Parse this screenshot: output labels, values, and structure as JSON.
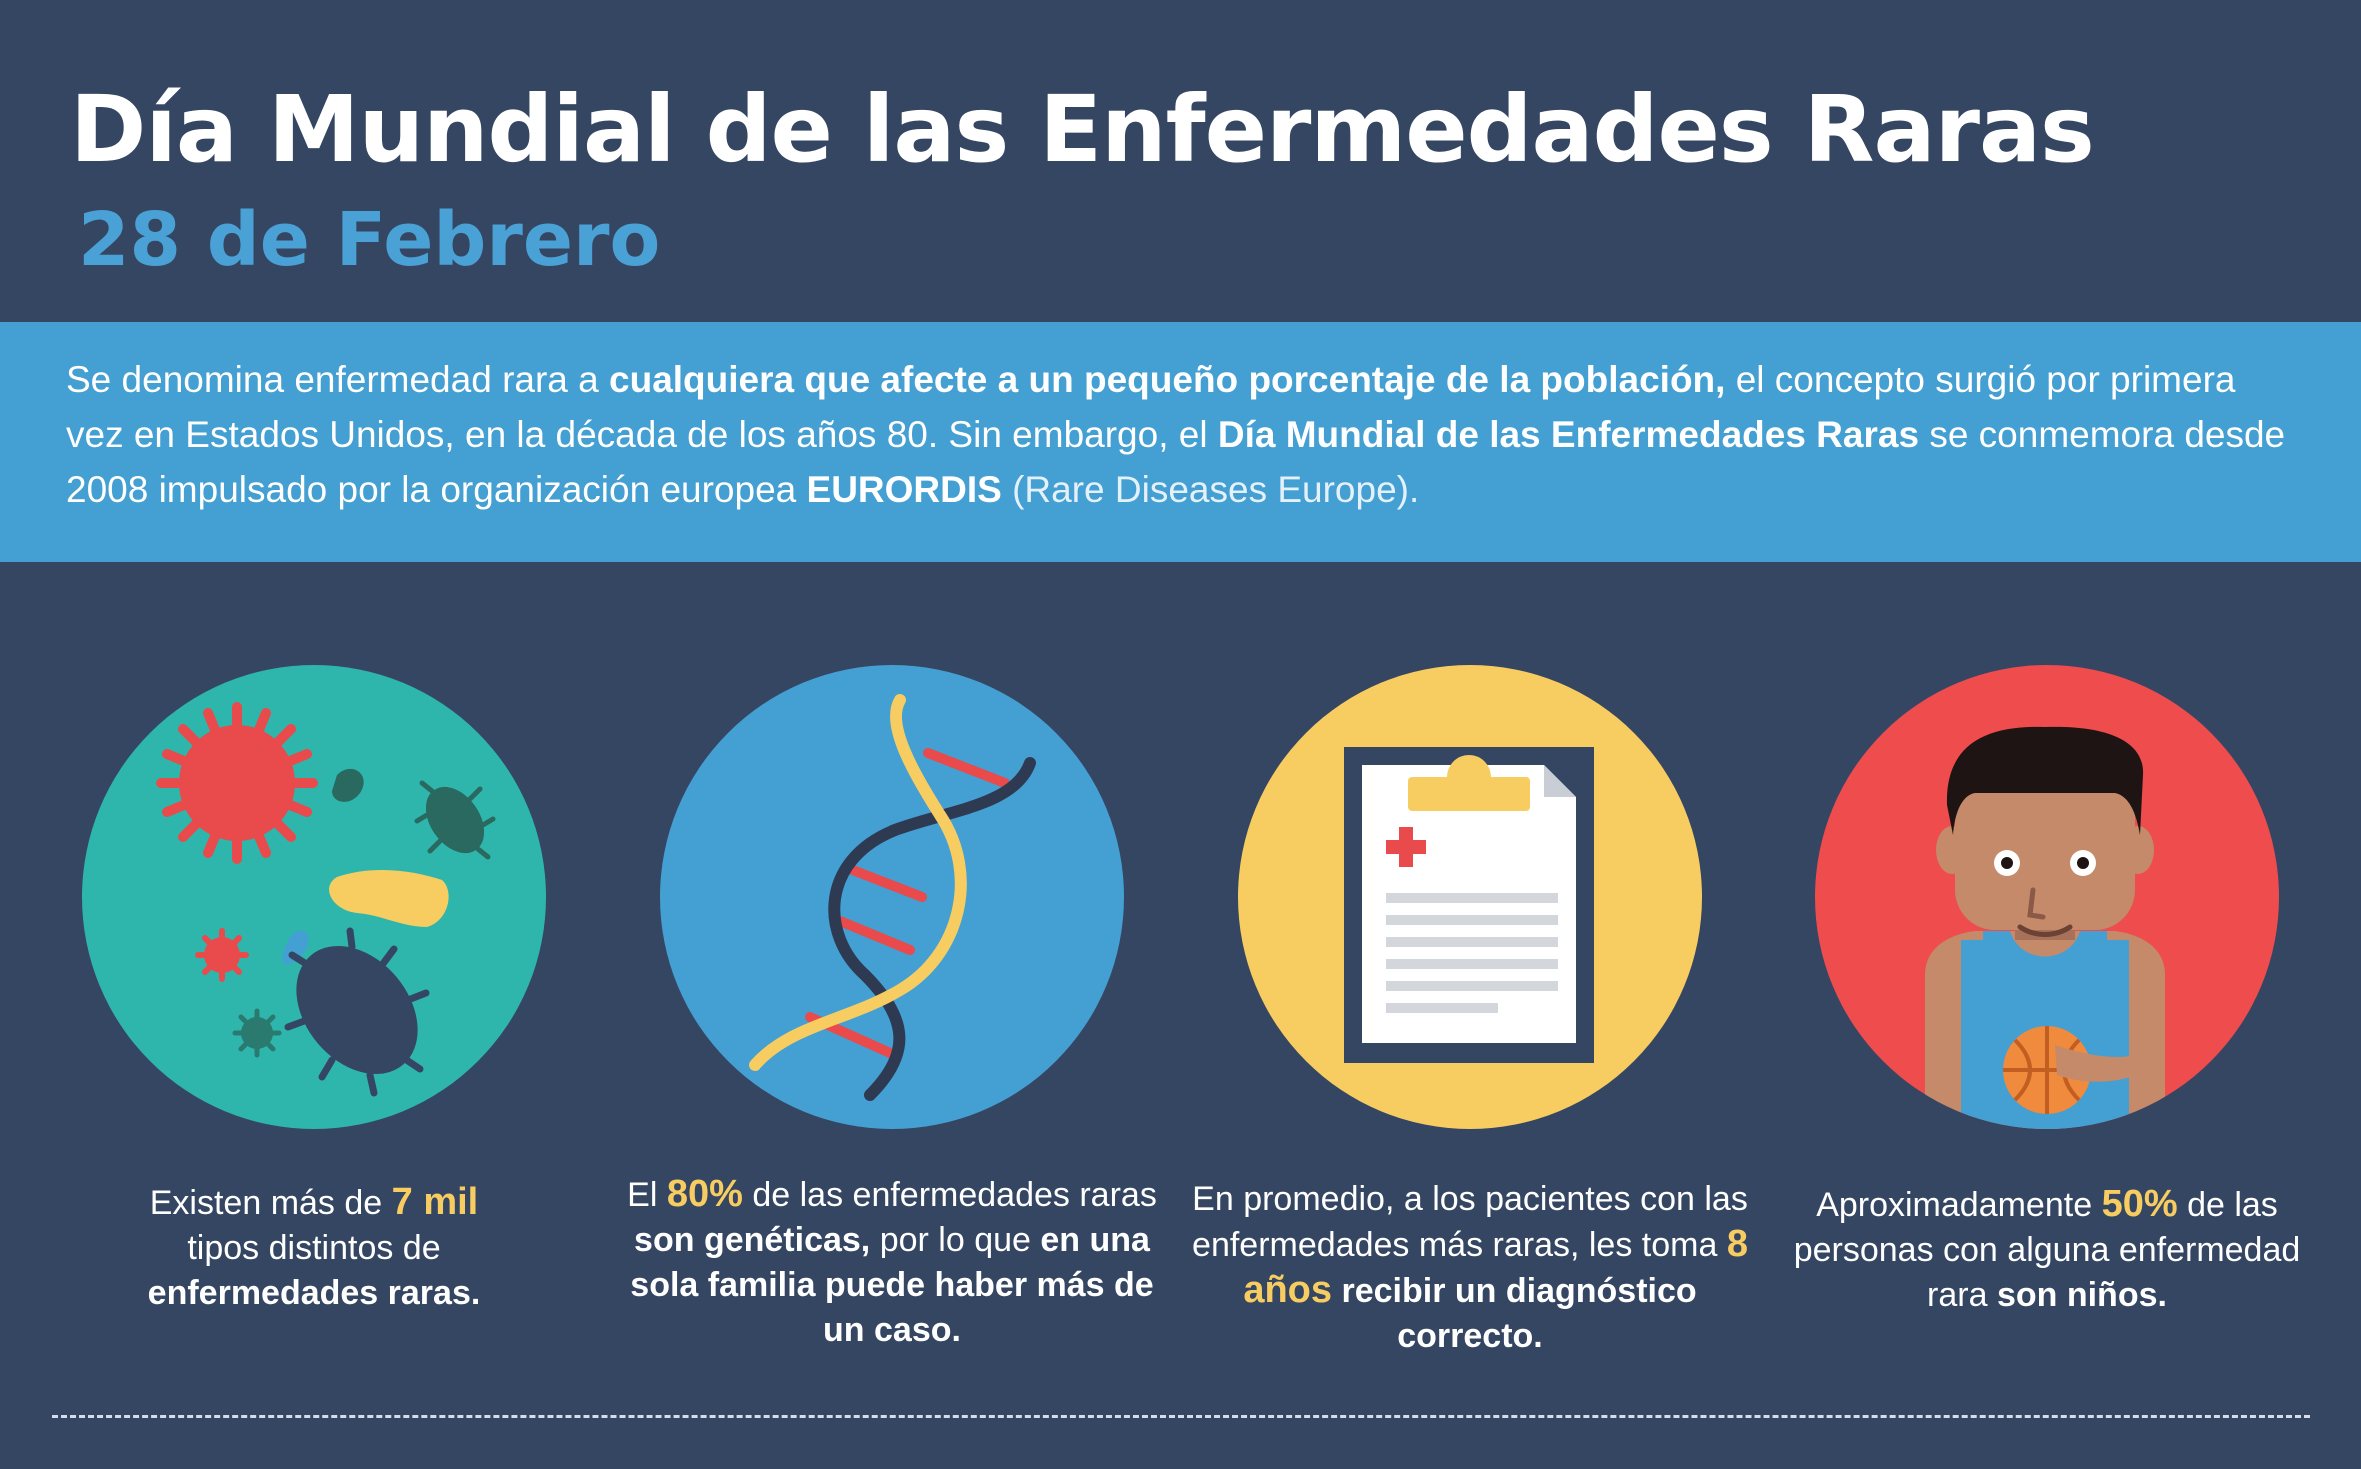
{
  "header": {
    "title": "Día Mundial de las Enfermedades Raras",
    "date": "28 de Febrero"
  },
  "intro": {
    "t1": "Se denomina enfermedad rara a ",
    "b1": "cualquiera que afecte a un pequeño porcentaje de la población,",
    "t2": " el concepto surgió por primera vez en Estados Unidos, en la década de los años 80. Sin embargo, el ",
    "b2": "Día Mundial de las Enfermedades Raras",
    "t3": " se conmemora desde 2008 impulsado por la organización europea ",
    "b3": "EURORDIS",
    "t4": " (Rare Diseases Europe)."
  },
  "facts": [
    {
      "icon": "microbes-icon",
      "p1": "Existen más de ",
      "highlight": "7 mil",
      "p2": " tipos distintos de ",
      "bold": "enfermedades raras."
    },
    {
      "icon": "dna-icon",
      "p1": "El ",
      "highlight": "80%",
      "p2": " de las enfermedades raras ",
      "bold": "son genéticas,",
      "p3": " por lo que ",
      "bold2": "en una sola familia puede haber más de un caso."
    },
    {
      "icon": "clipboard-icon",
      "p1": "En promedio, a los pacientes con las enfermedades más raras, les toma ",
      "highlight": "8 años",
      "p2": " ",
      "bold": "recibir un diagnóstico correcto."
    },
    {
      "icon": "child-icon",
      "p1": "Aproximadamente ",
      "highlight": "50%",
      "p2": " de las personas con alguna enfermedad rara ",
      "bold": "son niños."
    }
  ],
  "colors": {
    "background": "#354663",
    "band": "#449fd2",
    "teal": "#2eb6ad",
    "yellow": "#f7cd62",
    "red": "#ee4c4d"
  }
}
